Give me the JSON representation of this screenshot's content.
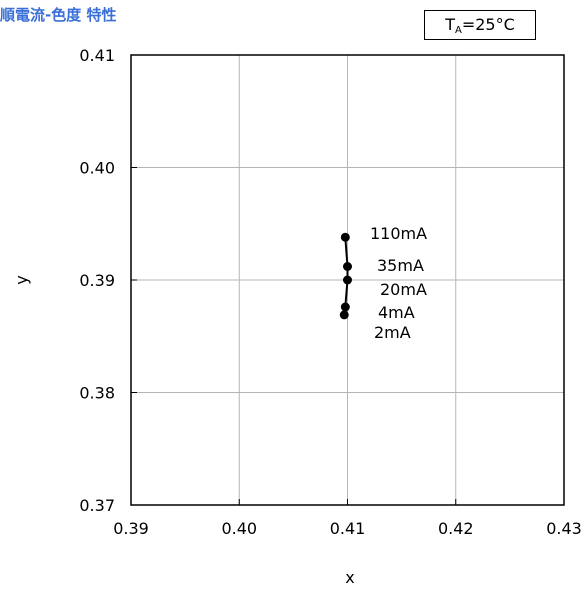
{
  "chart_data": {
    "type": "scatter",
    "title": "順電流-色度 特性",
    "condition": {
      "prefix": "T",
      "subscript": "A",
      "value": "=25°C"
    },
    "xlabel": "x",
    "ylabel": "y",
    "xlim": [
      0.39,
      0.43
    ],
    "ylim": [
      0.37,
      0.41
    ],
    "x_ticks": [
      0.39,
      0.4,
      0.41,
      0.42,
      0.43
    ],
    "y_ticks": [
      0.37,
      0.38,
      0.39,
      0.4,
      0.41
    ],
    "x_tick_labels": [
      "0.39",
      "0.40",
      "0.41",
      "0.42",
      "0.43"
    ],
    "y_tick_labels": [
      "0.37",
      "0.38",
      "0.39",
      "0.40",
      "0.41"
    ],
    "grid": true,
    "points": [
      {
        "label": "2mA",
        "x": 0.4097,
        "y": 0.3869
      },
      {
        "label": "4mA",
        "x": 0.4098,
        "y": 0.3876
      },
      {
        "label": "20mA",
        "x": 0.41,
        "y": 0.39
      },
      {
        "label": "35mA",
        "x": 0.41,
        "y": 0.3912
      },
      {
        "label": "110mA",
        "x": 0.4098,
        "y": 0.3938
      }
    ]
  }
}
